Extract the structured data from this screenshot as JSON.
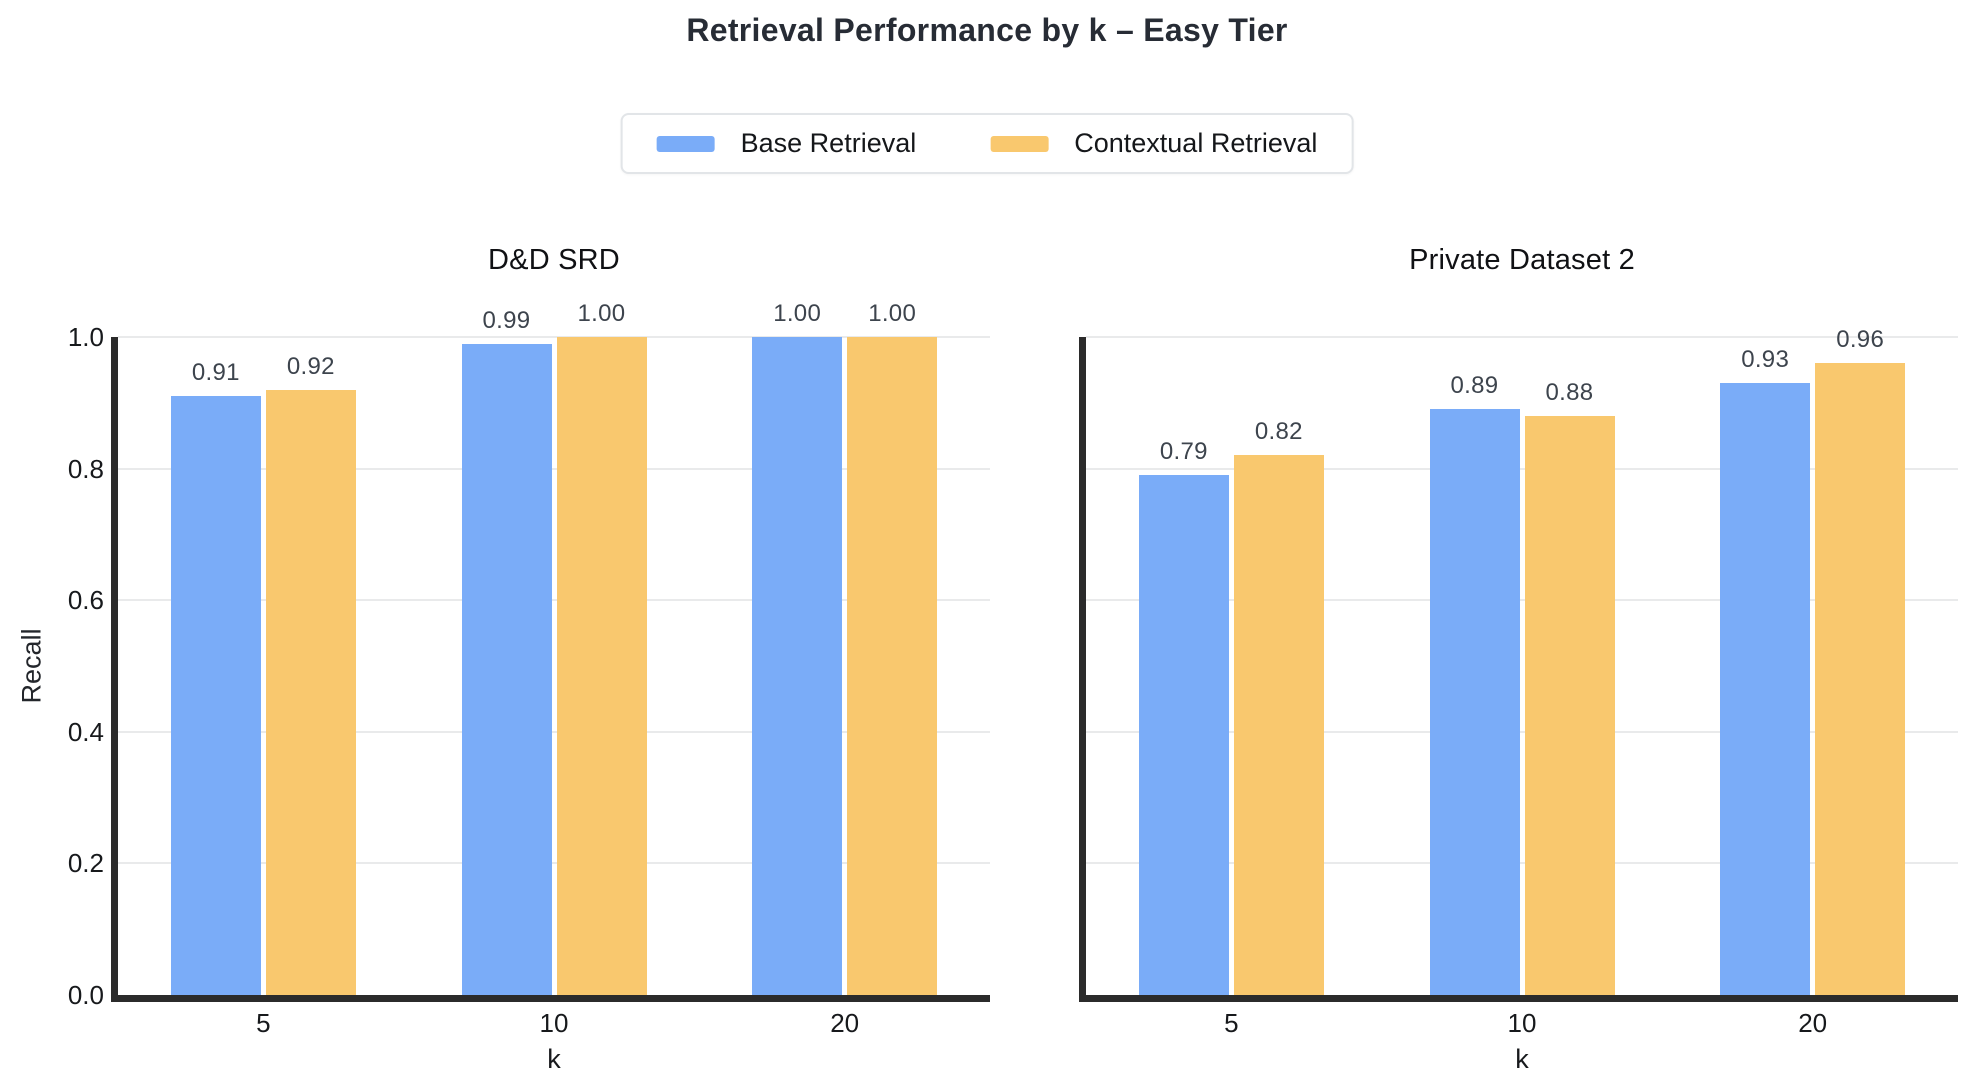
{
  "chart_data": {
    "type": "bar",
    "title": "Retrieval Performance by k – Easy Tier",
    "xlabel": "k",
    "ylabel": "Recall",
    "ylim": [
      0.0,
      1.0
    ],
    "yticks": [
      {
        "value": 0.0,
        "label": "0.0"
      },
      {
        "value": 0.2,
        "label": "0.2"
      },
      {
        "value": 0.4,
        "label": "0.4"
      },
      {
        "value": 0.6,
        "label": "0.6"
      },
      {
        "value": 0.8,
        "label": "0.8"
      },
      {
        "value": 1.0,
        "label": "1.0"
      }
    ],
    "categories": [
      "5",
      "10",
      "20"
    ],
    "grid": true,
    "legend_position": "top center",
    "series_meta": [
      {
        "name": "Base Retrieval",
        "color": "#7aacf8"
      },
      {
        "name": "Contextual Retrieval",
        "color": "#f9c86e"
      }
    ],
    "subplots": [
      {
        "title": "D&D SRD",
        "series": [
          {
            "name": "Base Retrieval",
            "values": [
              0.91,
              0.99,
              1.0
            ]
          },
          {
            "name": "Contextual Retrieval",
            "values": [
              0.92,
              1.0,
              1.0
            ]
          }
        ]
      },
      {
        "title": "Private Dataset 2",
        "series": [
          {
            "name": "Base Retrieval",
            "values": [
              0.79,
              0.89,
              0.93
            ]
          },
          {
            "name": "Contextual Retrieval",
            "values": [
              0.82,
              0.88,
              0.96
            ]
          }
        ]
      }
    ],
    "styles": {
      "spine_color": "#2b2b2b",
      "gridline_color": "#e9eaeb",
      "title_color": "#272c35",
      "value_label_color": "#3d444d",
      "background": "#ffffff"
    }
  }
}
